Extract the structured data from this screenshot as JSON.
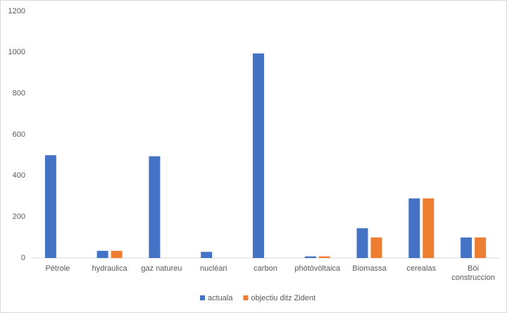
{
  "chart_data": {
    "type": "bar",
    "categories": [
      "Pétrole",
      "hydraulica",
      "gaz natureu",
      "nucléari",
      "carbon",
      "phòtòvòltaica",
      "Biomassa",
      "cerealas",
      "Bòi construccion"
    ],
    "series": [
      {
        "name": "actuala",
        "color": "#4472c4",
        "values": [
          500,
          35,
          495,
          30,
          995,
          8,
          145,
          290,
          100
        ]
      },
      {
        "name": "objectiu ditz Zident",
        "color": "#ed7d31",
        "values": [
          0,
          35,
          0,
          0,
          0,
          8,
          100,
          290,
          100
        ]
      }
    ],
    "ylim": [
      0,
      1200
    ],
    "yticks": [
      0,
      200,
      400,
      600,
      800,
      1000,
      1200
    ],
    "grid": false
  }
}
